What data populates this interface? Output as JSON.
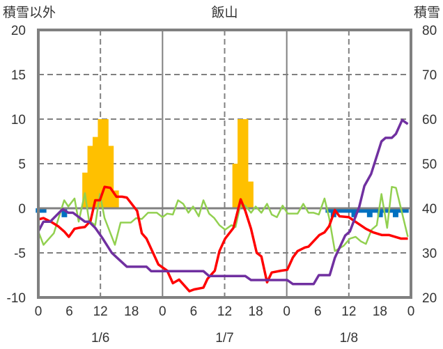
{
  "chart_data": {
    "type": "line",
    "title": "飯山",
    "ylabel_left": "積雪以外",
    "ylabel_right": "積雪",
    "ylim_left": [
      -10,
      20
    ],
    "yticks_left": [
      20,
      15,
      10,
      5,
      0,
      -5,
      -10
    ],
    "ylim_right": [
      20,
      80
    ],
    "yticks_right": [
      80,
      70,
      60,
      50,
      40,
      30,
      20
    ],
    "xlim_hours": [
      0,
      72
    ],
    "xticks": [
      {
        "h": 0,
        "label": "0"
      },
      {
        "h": 6,
        "label": "6"
      },
      {
        "h": 12,
        "label": "12"
      },
      {
        "h": 18,
        "label": "18"
      },
      {
        "h": 24,
        "label": "0"
      },
      {
        "h": 30,
        "label": "6"
      },
      {
        "h": 36,
        "label": "12"
      },
      {
        "h": 42,
        "label": "18"
      },
      {
        "h": 48,
        "label": "0"
      },
      {
        "h": 54,
        "label": "6"
      },
      {
        "h": 60,
        "label": "12"
      },
      {
        "h": 66,
        "label": "18"
      },
      {
        "h": 72,
        "label": "0"
      }
    ],
    "dates": [
      {
        "h": 12,
        "label": "1/6"
      },
      {
        "h": 36,
        "label": "1/7"
      },
      {
        "h": 60,
        "label": "1/8"
      }
    ],
    "grid": true,
    "series": [
      {
        "name": "precipitation",
        "kind": "bar",
        "axis": "left",
        "color": "#FFC000",
        "points": [
          [
            9,
            4
          ],
          [
            10,
            7
          ],
          [
            11,
            8
          ],
          [
            12,
            10
          ],
          [
            13,
            10
          ],
          [
            14,
            7
          ],
          [
            15,
            2
          ],
          [
            38,
            5
          ],
          [
            39,
            10
          ],
          [
            40,
            10
          ],
          [
            41,
            3
          ]
        ]
      },
      {
        "name": "snowfall-change",
        "kind": "bar",
        "axis": "left",
        "color": "#0070C0",
        "points": [
          [
            0,
            -0.5
          ],
          [
            1,
            -0.5
          ],
          [
            5,
            -1.0
          ],
          [
            56,
            -0.5
          ],
          [
            57,
            -1.0
          ],
          [
            58,
            -0.5
          ],
          [
            59,
            -0.5
          ],
          [
            60,
            -0.5
          ],
          [
            61,
            -1.0
          ],
          [
            62,
            -0.5
          ],
          [
            63,
            -0.5
          ],
          [
            64,
            -1.0
          ],
          [
            65,
            -0.5
          ],
          [
            66,
            -1.0
          ],
          [
            67,
            -0.5
          ],
          [
            68,
            -0.5
          ],
          [
            69,
            -1.0
          ],
          [
            70,
            -0.5
          ],
          [
            71,
            -0.5
          ]
        ]
      },
      {
        "name": "green-series",
        "kind": "line",
        "axis": "left",
        "color": "#92D050",
        "points": [
          [
            0,
            -2.6
          ],
          [
            1,
            -4.1
          ],
          [
            3,
            -2.8
          ],
          [
            5,
            0.9
          ],
          [
            5.8,
            0.2
          ],
          [
            7,
            1.1
          ],
          [
            7.8,
            -1.5
          ],
          [
            9,
            1.7
          ],
          [
            9.8,
            -1.4
          ],
          [
            11,
            -1.9
          ],
          [
            11.9,
            1.6
          ],
          [
            12.8,
            -1.1
          ],
          [
            14.8,
            -4.1
          ],
          [
            15.9,
            -1.6
          ],
          [
            17.9,
            -1.6
          ],
          [
            18.9,
            -1.1
          ],
          [
            20,
            -1.2
          ],
          [
            21.2,
            -0.5
          ],
          [
            22.9,
            -0.5
          ],
          [
            24,
            -1.0
          ],
          [
            24.9,
            -0.6
          ],
          [
            26,
            -0.7
          ],
          [
            27,
            0.9
          ],
          [
            28,
            0.5
          ],
          [
            29,
            -0.5
          ],
          [
            29.9,
            0.2
          ],
          [
            31,
            -0.9
          ],
          [
            31.9,
            0.9
          ],
          [
            33,
            -0.6
          ],
          [
            34,
            -1.1
          ],
          [
            35,
            -1.9
          ],
          [
            36.1,
            -2.4
          ],
          [
            37.3,
            -1.9
          ],
          [
            38.1,
            -2.1
          ],
          [
            39.1,
            0.5
          ],
          [
            40,
            0.3
          ],
          [
            41.1,
            -0.5
          ],
          [
            42,
            0.2
          ],
          [
            43.1,
            -0.5
          ],
          [
            44.2,
            0.5
          ],
          [
            45.1,
            -0.7
          ],
          [
            46.1,
            -1.0
          ],
          [
            47.2,
            0.3
          ],
          [
            48.2,
            -0.6
          ],
          [
            50.1,
            -0.6
          ],
          [
            51.2,
            0.5
          ],
          [
            52.2,
            -0.5
          ],
          [
            53.2,
            -0.5
          ],
          [
            54.2,
            -0.7
          ],
          [
            55.3,
            1.1
          ],
          [
            56.2,
            -1.1
          ],
          [
            57.3,
            -4.8
          ],
          [
            59,
            -4.2
          ],
          [
            60.2,
            -3.4
          ],
          [
            61.3,
            -3.2
          ],
          [
            62.3,
            -3.7
          ],
          [
            63.3,
            -4.0
          ],
          [
            64.4,
            -2.4
          ],
          [
            65.4,
            -1.9
          ],
          [
            66.3,
            1.6
          ],
          [
            67.4,
            -2.2
          ],
          [
            68.3,
            2.4
          ],
          [
            69.1,
            2.3
          ],
          [
            71.4,
            -3.2
          ]
        ]
      },
      {
        "name": "temperature",
        "kind": "line",
        "axis": "left",
        "color": "#FF0000",
        "points": [
          [
            0,
            -1.25
          ],
          [
            1,
            -1.1
          ],
          [
            2.7,
            -1.6
          ],
          [
            3.8,
            -2.0
          ],
          [
            5,
            -2.6
          ],
          [
            5.9,
            -3.2
          ],
          [
            7,
            -2.3
          ],
          [
            7.8,
            -2.2
          ],
          [
            9,
            -2.1
          ],
          [
            10.1,
            -1.4
          ],
          [
            11,
            0.9
          ],
          [
            11.9,
            0.9
          ],
          [
            12.8,
            2.4
          ],
          [
            13.9,
            2.3
          ],
          [
            15.1,
            1.3
          ],
          [
            16.2,
            1.3
          ],
          [
            17.1,
            1.2
          ],
          [
            19.1,
            -0.3
          ],
          [
            20,
            -2.8
          ],
          [
            20.9,
            -3.4
          ],
          [
            23.2,
            -6.3
          ],
          [
            24.9,
            -7.0
          ],
          [
            26,
            -8.4
          ],
          [
            27.2,
            -8.0
          ],
          [
            29.2,
            -9.3
          ],
          [
            30.1,
            -9.1
          ],
          [
            31.9,
            -8.9
          ],
          [
            32.7,
            -7.9
          ],
          [
            34.1,
            -7.0
          ],
          [
            35,
            -4.8
          ],
          [
            36.1,
            -3.4
          ],
          [
            37.7,
            -2.2
          ],
          [
            39.1,
            1.0
          ],
          [
            40,
            -0.3
          ],
          [
            41.1,
            -2.3
          ],
          [
            42.2,
            -5.0
          ],
          [
            43.1,
            -5.4
          ],
          [
            44.2,
            -8.3
          ],
          [
            45.1,
            -7.2
          ],
          [
            46.9,
            -7.0
          ],
          [
            48.1,
            -6.9
          ],
          [
            49.2,
            -5.5
          ],
          [
            50.1,
            -4.8
          ],
          [
            51.5,
            -4.4
          ],
          [
            52.2,
            -4.3
          ],
          [
            54.3,
            -3.0
          ],
          [
            55.3,
            -2.7
          ],
          [
            56.2,
            -2.0
          ],
          [
            57.3,
            -0.2
          ],
          [
            58.2,
            -0.9
          ],
          [
            60,
            -1.0
          ],
          [
            61,
            -1.4
          ],
          [
            63.3,
            -2.3
          ],
          [
            64.7,
            -2.7
          ],
          [
            66.4,
            -3.0
          ],
          [
            67.8,
            -3.0
          ],
          [
            70.1,
            -3.4
          ],
          [
            71.4,
            -3.4
          ]
        ]
      },
      {
        "name": "snow-depth",
        "kind": "line",
        "axis": "right",
        "color": "#7030A0",
        "points": [
          [
            0,
            34.8
          ],
          [
            1,
            37
          ],
          [
            2.3,
            37
          ],
          [
            4.7,
            39.8
          ],
          [
            5.8,
            39
          ],
          [
            6.7,
            39
          ],
          [
            9,
            37
          ],
          [
            9.8,
            37
          ],
          [
            11,
            35.6
          ],
          [
            12.4,
            33.3
          ],
          [
            14.2,
            30
          ],
          [
            15.5,
            28.6
          ],
          [
            17.1,
            26.9
          ],
          [
            20.9,
            26.9
          ],
          [
            21.8,
            25.9
          ],
          [
            31.9,
            25.9
          ],
          [
            33,
            24.8
          ],
          [
            40,
            24.8
          ],
          [
            41.1,
            23.9
          ],
          [
            48.1,
            23.9
          ],
          [
            49.2,
            23
          ],
          [
            53.2,
            23
          ],
          [
            54.2,
            25
          ],
          [
            56.3,
            25
          ],
          [
            57.3,
            28.9
          ],
          [
            59.3,
            33.9
          ],
          [
            60.2,
            34.8
          ],
          [
            62,
            40.3
          ],
          [
            63,
            45
          ],
          [
            64.3,
            47.7
          ],
          [
            66.3,
            55
          ],
          [
            67.1,
            55.8
          ],
          [
            68.3,
            55.8
          ],
          [
            69.1,
            56.7
          ],
          [
            70.3,
            59.8
          ],
          [
            71.4,
            58.9
          ]
        ]
      }
    ]
  }
}
